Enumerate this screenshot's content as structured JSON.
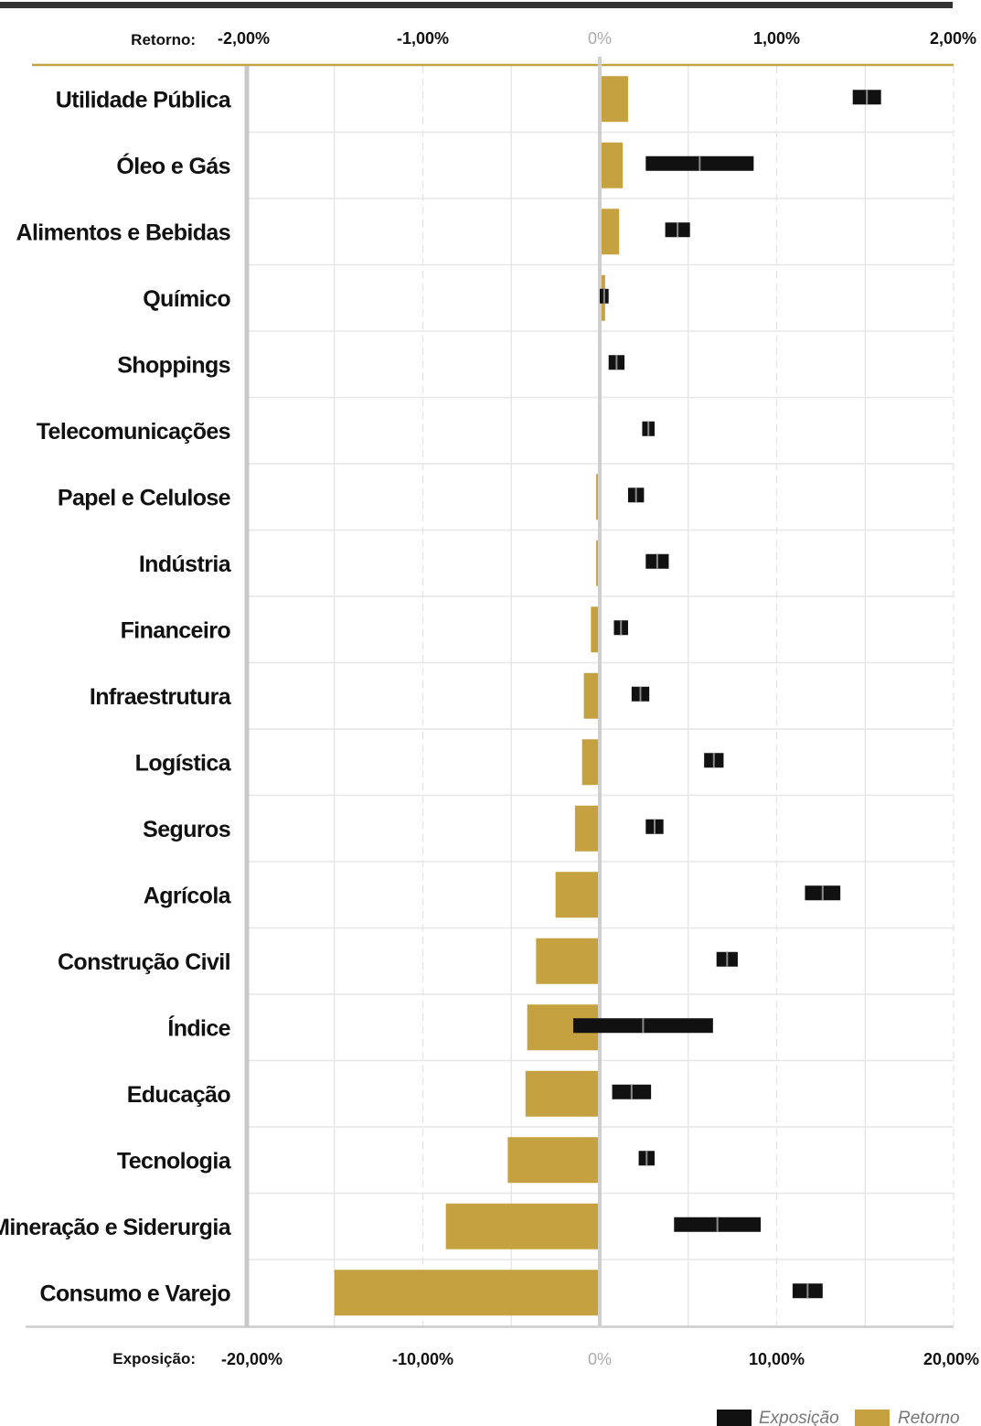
{
  "chart_data": {
    "type": "bar",
    "categories": [
      "Utilidade Pública",
      "Óleo e Gás",
      "Alimentos e Bebidas",
      "Químico",
      "Shoppings",
      "Telecomunicações",
      "Papel e Celulose",
      "Indústria",
      "Financeiro",
      "Infraestrutura",
      "Logística",
      "Seguros",
      "Agrícola",
      "Construção Civil",
      "Índice",
      "Educação",
      "Tecnologia",
      "Mineração e Siderurgia",
      "Consumo e Varejo"
    ],
    "series": [
      {
        "name": "Retorno",
        "color": "#c5a13f",
        "axis": "top",
        "unit": "%",
        "values": [
          0.16,
          0.13,
          0.11,
          0.03,
          0.0,
          0.0,
          -0.02,
          -0.02,
          -0.05,
          -0.09,
          -0.1,
          -0.14,
          -0.25,
          -0.36,
          -0.41,
          -0.42,
          -0.52,
          -0.87,
          -1.5
        ]
      },
      {
        "name": "Exposição",
        "color": "#111111",
        "axis": "bottom",
        "unit": "%",
        "ranges": [
          [
            14.3,
            15.9
          ],
          [
            2.6,
            8.7
          ],
          [
            3.7,
            5.1
          ],
          [
            0.0,
            0.5
          ],
          [
            0.5,
            1.4
          ],
          [
            2.4,
            3.1
          ],
          [
            1.6,
            2.5
          ],
          [
            2.6,
            3.9
          ],
          [
            0.8,
            1.6
          ],
          [
            1.8,
            2.8
          ],
          [
            5.9,
            7.0
          ],
          [
            2.6,
            3.6
          ],
          [
            11.6,
            13.6
          ],
          [
            6.6,
            7.8
          ],
          [
            -1.5,
            6.4
          ],
          [
            0.7,
            2.9
          ],
          [
            2.2,
            3.1
          ],
          [
            4.2,
            9.1
          ],
          [
            10.9,
            12.6
          ]
        ]
      }
    ],
    "top_axis": {
      "title": "Retorno:",
      "range": [
        -2,
        2
      ],
      "ticks": [
        -2,
        -1,
        0,
        1,
        2
      ],
      "tick_labels": [
        "-2,00%",
        "-1,00%",
        "0%",
        "1,00%",
        "2,00%"
      ]
    },
    "bottom_axis": {
      "title": "Exposição:",
      "range": [
        -20,
        20
      ],
      "ticks": [
        -20,
        -10,
        0,
        10,
        20
      ],
      "tick_labels": [
        "-20,00%",
        "-10,00%",
        "0%",
        "10,00%",
        "20,00%"
      ]
    },
    "grid": true,
    "legend": {
      "position": "bottom-right",
      "items": [
        {
          "label": "Exposição",
          "color": "#111111"
        },
        {
          "label": "Retorno",
          "color": "#c5a13f"
        }
      ]
    }
  }
}
